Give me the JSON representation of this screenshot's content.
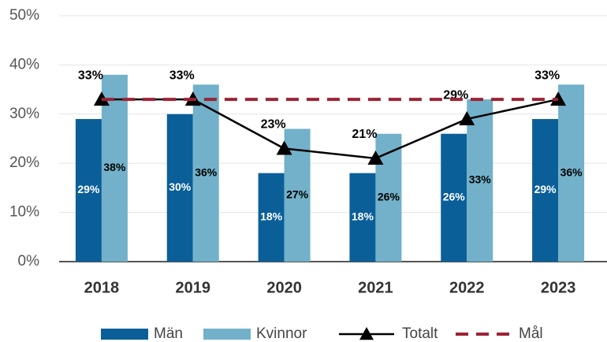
{
  "chart_data": {
    "type": "bar",
    "categories": [
      "2018",
      "2019",
      "2020",
      "2021",
      "2022",
      "2023"
    ],
    "series": [
      {
        "name": "Män",
        "type": "bar",
        "color": "#0b5f98",
        "values": [
          29,
          30,
          18,
          18,
          26,
          29
        ],
        "value_labels": [
          "29%",
          "30%",
          "18%",
          "18%",
          "26%",
          "29%"
        ]
      },
      {
        "name": "Kvinnor",
        "type": "bar",
        "color": "#72b1c9",
        "values": [
          38,
          36,
          27,
          26,
          33,
          36
        ],
        "value_labels": [
          "38%",
          "36%",
          "27%",
          "26%",
          "33%",
          "36%"
        ]
      },
      {
        "name": "Totalt",
        "type": "line",
        "color": "#000000",
        "values": [
          33,
          33,
          23,
          21,
          29,
          33
        ],
        "value_labels": [
          "33%",
          "33%",
          "23%",
          "21%",
          "29%",
          "33%"
        ]
      },
      {
        "name": "Mål",
        "type": "dashed",
        "color": "#9b2335",
        "values": [
          33,
          33,
          33,
          33,
          33,
          33
        ]
      }
    ],
    "ylim": [
      0,
      50
    ],
    "yticks": [
      {
        "value": 0,
        "label": "0%"
      },
      {
        "value": 10,
        "label": "10%"
      },
      {
        "value": 20,
        "label": "20%"
      },
      {
        "value": 30,
        "label": "30%"
      },
      {
        "value": 40,
        "label": "40%"
      },
      {
        "value": 50,
        "label": "50%"
      }
    ],
    "grid": true,
    "legend": "bottom"
  }
}
